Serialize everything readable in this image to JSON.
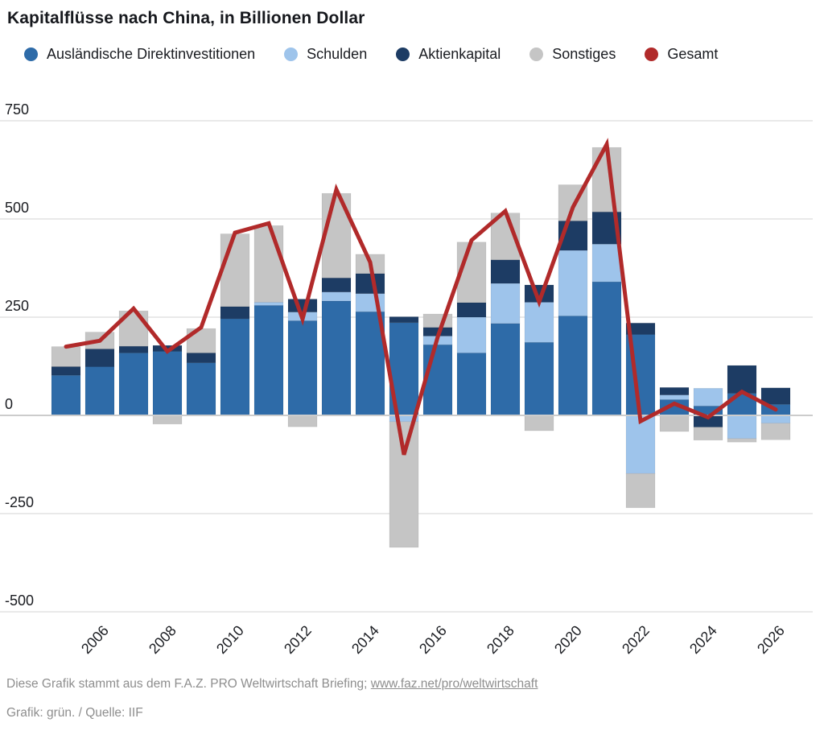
{
  "title": "Kapitalflüsse nach China, in Billionen Dollar",
  "legend": {
    "items": [
      {
        "key": "fdi",
        "label": "Ausländische Direktinvestitionen",
        "color": "#2e6ba8"
      },
      {
        "key": "schulden",
        "label": "Schulden",
        "color": "#9ec4eb"
      },
      {
        "key": "aktienkapital",
        "label": "Aktienkapital",
        "color": "#1d3c64"
      },
      {
        "key": "sonstiges",
        "label": "Sonstiges",
        "color": "#c5c5c5"
      },
      {
        "key": "gesamt",
        "label": "Gesamt",
        "color": "#b12a2a"
      }
    ]
  },
  "chart_data": {
    "type": "bar",
    "subtype": "stacked-bars-with-total-line",
    "title": "Kapitalflüsse nach China, in Billionen Dollar",
    "xlabel": "",
    "ylabel": "",
    "ylim": [
      -500,
      750
    ],
    "yticks": [
      750,
      500,
      250,
      0,
      -250,
      -500
    ],
    "grid": true,
    "legend_position": "top",
    "categories": [
      2005,
      2006,
      2007,
      2008,
      2009,
      2010,
      2011,
      2012,
      2013,
      2014,
      2015,
      2016,
      2017,
      2018,
      2019,
      2020,
      2021,
      2022,
      2023,
      2024,
      2025,
      2026
    ],
    "xtick_years": [
      2006,
      2008,
      2010,
      2012,
      2014,
      2016,
      2018,
      2020,
      2022,
      2024,
      2026
    ],
    "series": [
      {
        "key": "fdi",
        "name": "Ausländische Direktinvestitionen",
        "type": "bar",
        "color": "#2e6ba8",
        "values": [
          102,
          124,
          159,
          163,
          134,
          246,
          280,
          241,
          291,
          264,
          236,
          180,
          159,
          234,
          186,
          253,
          340,
          206,
          40,
          24,
          56,
          28
        ]
      },
      {
        "key": "schulden",
        "name": "Schulden",
        "type": "bar",
        "color": "#9ec4eb",
        "values": [
          0,
          0,
          0,
          0,
          0,
          0,
          8,
          22,
          23,
          46,
          -16,
          22,
          91,
          102,
          102,
          167,
          96,
          -148,
          12,
          45,
          -59,
          -20
        ]
      },
      {
        "key": "aktienkapital",
        "name": "Aktienkapital",
        "type": "bar",
        "color": "#1d3c64",
        "values": [
          22,
          45,
          17,
          15,
          25,
          31,
          0,
          33,
          36,
          51,
          15,
          22,
          37,
          60,
          44,
          75,
          82,
          29,
          19,
          -30,
          71,
          42
        ]
      },
      {
        "key": "sonstiges",
        "name": "Sonstiges",
        "type": "bar",
        "color": "#c5c5c5",
        "values": [
          51,
          43,
          90,
          -22,
          62,
          185,
          195,
          -29,
          215,
          49,
          -320,
          34,
          154,
          119,
          -39,
          92,
          164,
          -87,
          -41,
          -33,
          -9,
          -42
        ]
      },
      {
        "key": "gesamt",
        "name": "Gesamt",
        "type": "line",
        "color": "#b12a2a",
        "line_width": 5,
        "values": [
          175,
          190,
          272,
          163,
          224,
          465,
          489,
          245,
          575,
          390,
          -100,
          200,
          446,
          520,
          289,
          530,
          690,
          -15,
          30,
          -5,
          60,
          15
        ]
      }
    ],
    "colors": {
      "gridline": "#dcdcdc",
      "zero_line": "#cccccc",
      "tick_label": "#1a1c21"
    }
  },
  "footer": {
    "line1_text": "Diese Grafik stammt aus dem F.A.Z. PRO Weltwirtschaft Briefing;",
    "line1_link": "www.faz.net/pro/weltwirtschaft",
    "line2": "Grafik: grün. / Quelle: IIF"
  }
}
